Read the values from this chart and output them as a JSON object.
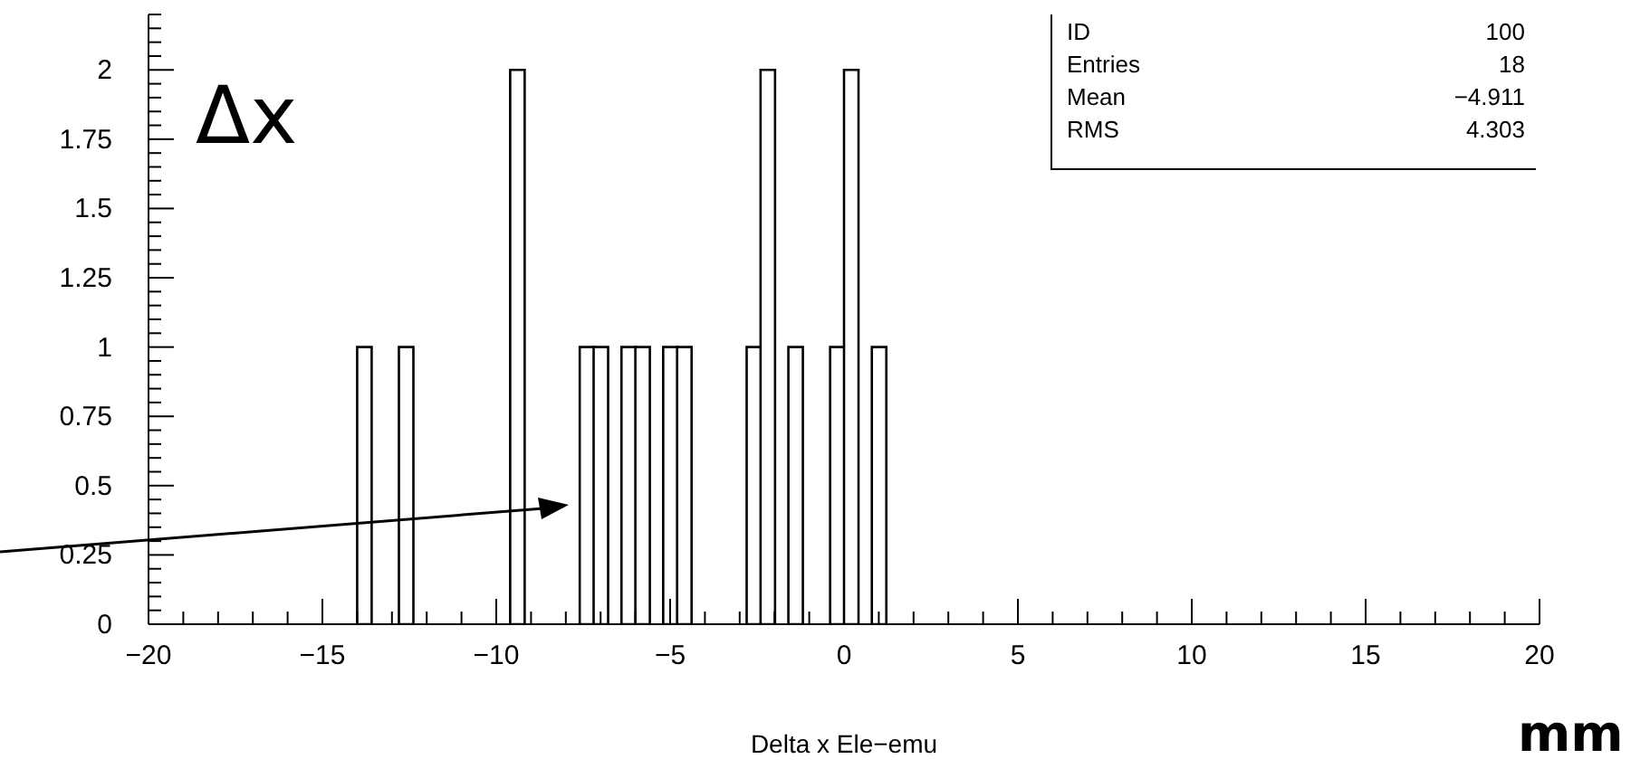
{
  "chart_data": {
    "type": "histogram",
    "xlabel": "Delta x Ele−emu",
    "bins": [
      -20,
      -19.6,
      -19.2,
      -18.8,
      -18.4,
      -18,
      -17.6,
      -17.2,
      -16.8,
      -16.4,
      -16,
      -15.6,
      -15.2,
      -14.8,
      -14.4,
      -14,
      -13.6,
      -13.2,
      -12.8,
      -12.4,
      -12,
      -11.6,
      -11.2,
      -10.8,
      -10.4,
      -10,
      -9.6,
      -9.2,
      -8.8,
      -8.4,
      -8,
      -7.6,
      -7.2,
      -6.8,
      -6.4,
      -6,
      -5.6,
      -5.2,
      -4.8,
      -4.4,
      -4,
      -3.6,
      -3.2,
      -2.8,
      -2.4,
      -2,
      -1.6,
      -1.2,
      -0.8,
      -0.4,
      0,
      0.4,
      0.8,
      1.2,
      1.6,
      2,
      2.4,
      2.8,
      3.2,
      3.6,
      4,
      4.4,
      4.8,
      5.2,
      5.6,
      6,
      6.4,
      6.8,
      7.2,
      7.6,
      8,
      8.4,
      8.8,
      9.2,
      9.6,
      10,
      10.4,
      10.8,
      11.2,
      11.6,
      12,
      12.4,
      12.8,
      13.2,
      13.6,
      14,
      14.4,
      14.8,
      15.2,
      15.6,
      16,
      16.4,
      16.8,
      17.2,
      17.6,
      18,
      18.4,
      18.8,
      19.2,
      19.6,
      20
    ],
    "values": [
      0,
      0,
      0,
      0,
      0,
      0,
      0,
      0,
      0,
      0,
      0,
      0,
      0,
      0,
      0,
      1,
      0,
      0,
      1,
      0,
      0,
      0,
      0,
      0,
      0,
      0,
      2,
      0,
      0,
      0,
      0,
      1,
      1,
      0,
      1,
      1,
      0,
      1,
      1,
      0,
      0,
      0,
      0,
      1,
      2,
      0,
      1,
      0,
      0,
      1,
      2,
      0,
      1,
      0,
      0,
      0,
      0,
      0,
      0,
      0,
      0,
      0,
      0,
      0,
      0,
      0,
      0,
      0,
      0,
      0,
      0,
      0,
      0,
      0,
      0,
      0,
      0,
      0,
      0,
      0,
      0,
      0,
      0,
      0,
      0,
      0,
      0,
      0,
      0,
      0,
      0,
      0,
      0,
      0,
      0,
      0,
      0,
      0,
      0,
      0
    ],
    "color": "#000000",
    "xlim": [
      -20,
      20
    ],
    "xticks": [
      -20,
      {
        "value": -19,
        "label": null
      },
      {
        "value": -18,
        "label": null
      },
      {
        "value": -17,
        "label": null
      },
      {
        "value": -16,
        "label": null
      },
      -15,
      {
        "value": -14,
        "label": null
      },
      {
        "value": -13,
        "label": null
      },
      {
        "value": -12,
        "label": null
      },
      {
        "value": -11,
        "label": null
      },
      -10,
      {
        "value": -9,
        "label": null
      },
      {
        "value": -8,
        "label": null
      },
      {
        "value": -7,
        "label": null
      },
      {
        "value": -6,
        "label": null
      },
      -5,
      {
        "value": -4,
        "label": null
      },
      {
        "value": -3,
        "label": null
      },
      {
        "value": -2,
        "label": null
      },
      {
        "value": -1,
        "label": null
      },
      0,
      {
        "value": 1,
        "label": null
      },
      {
        "value": 2,
        "label": null
      },
      {
        "value": 3,
        "label": null
      },
      {
        "value": 4,
        "label": null
      },
      5,
      {
        "value": 6,
        "label": null
      },
      {
        "value": 7,
        "label": null
      },
      {
        "value": 8,
        "label": null
      },
      {
        "value": 9,
        "label": null
      },
      10,
      {
        "value": 11,
        "label": null
      },
      {
        "value": 12,
        "label": null
      },
      {
        "value": 13,
        "label": null
      },
      {
        "value": 14,
        "label": null
      },
      15,
      {
        "value": 16,
        "label": null
      },
      {
        "value": 17,
        "label": null
      },
      {
        "value": 18,
        "label": null
      },
      {
        "value": 19,
        "label": null
      },
      20
    ],
    "ylim": [
      0,
      2.2
    ],
    "yticks": [
      0,
      {
        "value": 0.05,
        "label": null
      },
      {
        "value": 0.1,
        "label": null
      },
      {
        "value": 0.15,
        "label": null
      },
      {
        "value": 0.2,
        "label": null
      },
      0.25,
      {
        "value": 0.3,
        "label": null
      },
      {
        "value": 0.35,
        "label": null
      },
      {
        "value": 0.4,
        "label": null
      },
      {
        "value": 0.45,
        "label": null
      },
      0.5,
      {
        "value": 0.55,
        "label": null
      },
      {
        "value": 0.6,
        "label": null
      },
      {
        "value": 0.65,
        "label": null
      },
      {
        "value": 0.7,
        "label": null
      },
      0.75,
      {
        "value": 0.8,
        "label": null
      },
      {
        "value": 0.85,
        "label": null
      },
      {
        "value": 0.9,
        "label": null
      },
      {
        "value": 0.95,
        "label": null
      },
      1,
      {
        "value": 1.05,
        "label": null
      },
      {
        "value": 1.1,
        "label": null
      },
      {
        "value": 1.15,
        "label": null
      },
      {
        "value": 1.2,
        "label": null
      },
      1.25,
      {
        "value": 1.3,
        "label": null
      },
      {
        "value": 1.35,
        "label": null
      },
      {
        "value": 1.4,
        "label": null
      },
      {
        "value": 1.45,
        "label": null
      },
      1.5,
      {
        "value": 1.55,
        "label": null
      },
      {
        "value": 1.6,
        "label": null
      },
      {
        "value": 1.65,
        "label": null
      },
      {
        "value": 1.7,
        "label": null
      },
      1.75,
      {
        "value": 1.8,
        "label": null
      },
      {
        "value": 1.85,
        "label": null
      },
      {
        "value": 1.9,
        "label": null
      },
      {
        "value": 1.95,
        "label": null
      },
      2,
      {
        "value": 2.05,
        "label": null
      },
      {
        "value": 2.1,
        "label": null
      },
      {
        "value": 2.15,
        "label": null
      },
      {
        "value": 2.2,
        "label": null
      }
    ],
    "grid": false,
    "annotations": [
      "ID",
      "100",
      "Entries",
      "18",
      "Mean",
      "−4.911",
      "RMS",
      "4.303",
      "Δx",
      "mm"
    ]
  }
}
